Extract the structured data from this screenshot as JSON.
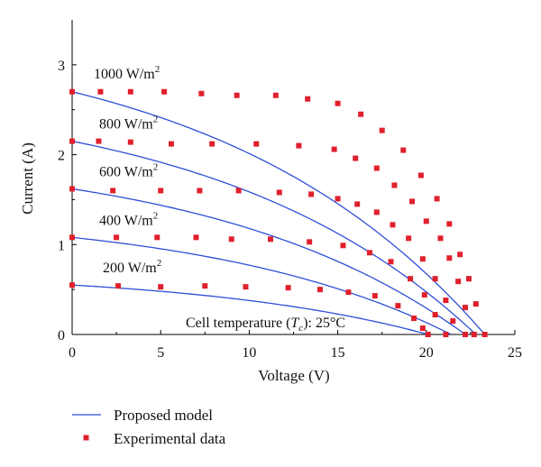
{
  "chart_data": {
    "type": "line",
    "xlabel": "Voltage (V)",
    "ylabel": "Current (A)",
    "xlim": [
      0,
      25
    ],
    "ylim": [
      0,
      3.5
    ],
    "x_ticks": [
      "0",
      "5",
      "10",
      "15",
      "20",
      "25"
    ],
    "y_ticks": [
      "0",
      "1",
      "2",
      "3"
    ],
    "annotation": {
      "prefix": "Cell temperature (",
      "var": "T",
      "sub": "c",
      "suffix": "): 25°C"
    },
    "legend": {
      "placement": "bottom-left",
      "line_label": "Proposed model",
      "marker_label": "Experimental data"
    },
    "colors": {
      "model_line": "#2f4fd8",
      "experimental_marker": "#e0202c",
      "axis": "#000000"
    },
    "series": [
      {
        "name": "1000 W/m2",
        "label_text": "1000 W/m",
        "label_exp": "2",
        "isc": 2.7,
        "voc": 23.3,
        "a": 1.55,
        "points": [
          [
            0,
            2.7
          ],
          [
            1.6,
            2.7
          ],
          [
            3.3,
            2.7
          ],
          [
            5.2,
            2.7
          ],
          [
            7.3,
            2.68
          ],
          [
            9.3,
            2.66
          ],
          [
            11.5,
            2.66
          ],
          [
            13.3,
            2.62
          ],
          [
            15.0,
            2.57
          ],
          [
            16.3,
            2.45
          ],
          [
            17.5,
            2.27
          ],
          [
            18.7,
            2.05
          ],
          [
            19.7,
            1.77
          ],
          [
            20.6,
            1.51
          ],
          [
            21.3,
            1.23
          ],
          [
            21.9,
            0.89
          ],
          [
            22.4,
            0.62
          ],
          [
            22.8,
            0.34
          ],
          [
            23.3,
            0.0
          ]
        ]
      },
      {
        "name": "800 W/m2",
        "label_text": "800 W/m",
        "label_exp": "2",
        "isc": 2.15,
        "voc": 22.8,
        "a": 1.55,
        "points": [
          [
            0,
            2.15
          ],
          [
            1.5,
            2.15
          ],
          [
            3.3,
            2.14
          ],
          [
            5.6,
            2.12
          ],
          [
            7.9,
            2.12
          ],
          [
            10.4,
            2.12
          ],
          [
            12.8,
            2.1
          ],
          [
            14.8,
            2.06
          ],
          [
            16.0,
            1.96
          ],
          [
            17.2,
            1.85
          ],
          [
            18.2,
            1.66
          ],
          [
            19.2,
            1.48
          ],
          [
            20.0,
            1.26
          ],
          [
            20.8,
            1.07
          ],
          [
            21.3,
            0.85
          ],
          [
            21.8,
            0.59
          ],
          [
            22.2,
            0.3
          ],
          [
            22.7,
            0.0
          ]
        ]
      },
      {
        "name": "600 W/m2",
        "label_text": "600 W/m",
        "label_exp": "2",
        "isc": 1.62,
        "voc": 22.2,
        "a": 1.55,
        "points": [
          [
            0,
            1.62
          ],
          [
            2.3,
            1.6
          ],
          [
            5.0,
            1.6
          ],
          [
            7.2,
            1.6
          ],
          [
            9.4,
            1.6
          ],
          [
            11.7,
            1.58
          ],
          [
            13.5,
            1.56
          ],
          [
            15.0,
            1.51
          ],
          [
            16.1,
            1.45
          ],
          [
            17.2,
            1.36
          ],
          [
            18.1,
            1.22
          ],
          [
            19.0,
            1.07
          ],
          [
            19.8,
            0.84
          ],
          [
            20.5,
            0.62
          ],
          [
            21.1,
            0.38
          ],
          [
            21.5,
            0.15
          ],
          [
            22.2,
            0.0
          ]
        ]
      },
      {
        "name": "400 W/m2",
        "label_text": "400 W/m",
        "label_exp": "2",
        "isc": 1.08,
        "voc": 21.4,
        "a": 1.55,
        "points": [
          [
            0,
            1.08
          ],
          [
            2.5,
            1.08
          ],
          [
            4.8,
            1.08
          ],
          [
            7.0,
            1.08
          ],
          [
            9.0,
            1.06
          ],
          [
            11.2,
            1.06
          ],
          [
            13.4,
            1.03
          ],
          [
            15.3,
            0.99
          ],
          [
            16.8,
            0.91
          ],
          [
            18.0,
            0.81
          ],
          [
            19.1,
            0.62
          ],
          [
            19.9,
            0.44
          ],
          [
            20.5,
            0.22
          ],
          [
            21.1,
            0.0
          ]
        ]
      },
      {
        "name": "200 W/m2",
        "label_text": "200 W/m",
        "label_exp": "2",
        "isc": 0.55,
        "voc": 20.1,
        "a": 1.55,
        "points": [
          [
            0,
            0.55
          ],
          [
            2.6,
            0.54
          ],
          [
            5.0,
            0.53
          ],
          [
            7.5,
            0.54
          ],
          [
            9.8,
            0.53
          ],
          [
            12.2,
            0.52
          ],
          [
            14.0,
            0.5
          ],
          [
            15.6,
            0.47
          ],
          [
            17.1,
            0.43
          ],
          [
            18.4,
            0.32
          ],
          [
            19.3,
            0.18
          ],
          [
            19.8,
            0.07
          ],
          [
            20.1,
            0.0
          ]
        ]
      }
    ]
  }
}
